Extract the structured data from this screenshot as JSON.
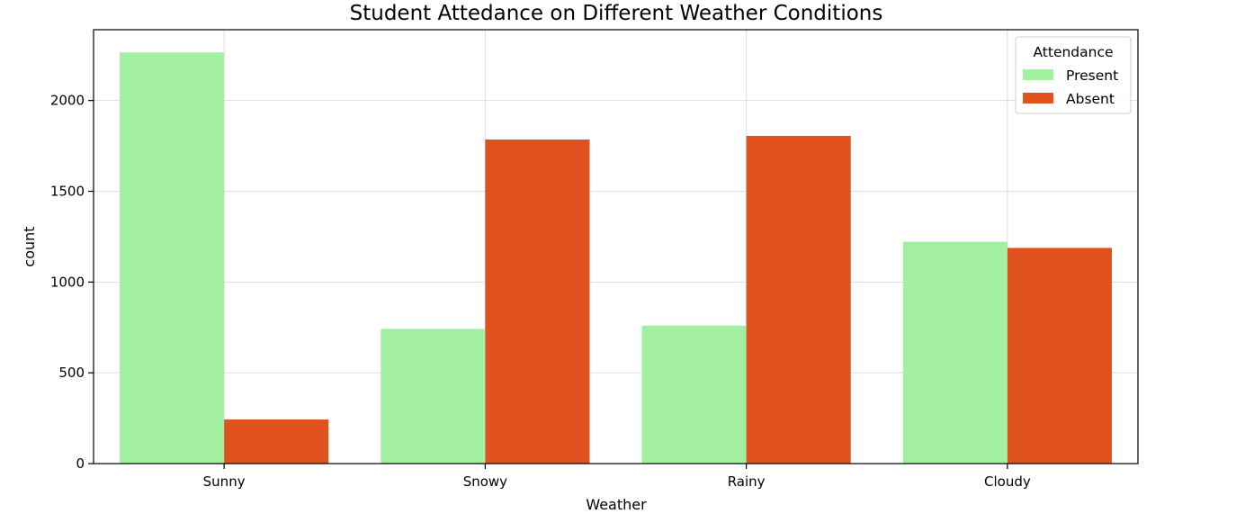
{
  "chart_data": {
    "type": "bar",
    "title": "Student Attedance on Different Weather Conditions",
    "xlabel": "Weather",
    "ylabel": "count",
    "categories": [
      "Sunny",
      "Snowy",
      "Rainy",
      "Cloudy"
    ],
    "series": [
      {
        "name": "Present",
        "color": "#a3f0a0",
        "values": [
          2265,
          742,
          760,
          1222
        ]
      },
      {
        "name": "Absent",
        "color": "#e0531f",
        "values": [
          243,
          1785,
          1805,
          1188
        ]
      }
    ],
    "ylim": [
      0,
      2390
    ],
    "yticks": [
      0,
      500,
      1000,
      1500,
      2000
    ],
    "grid": true,
    "legend": {
      "title": "Attendance",
      "position": "top-right"
    }
  }
}
